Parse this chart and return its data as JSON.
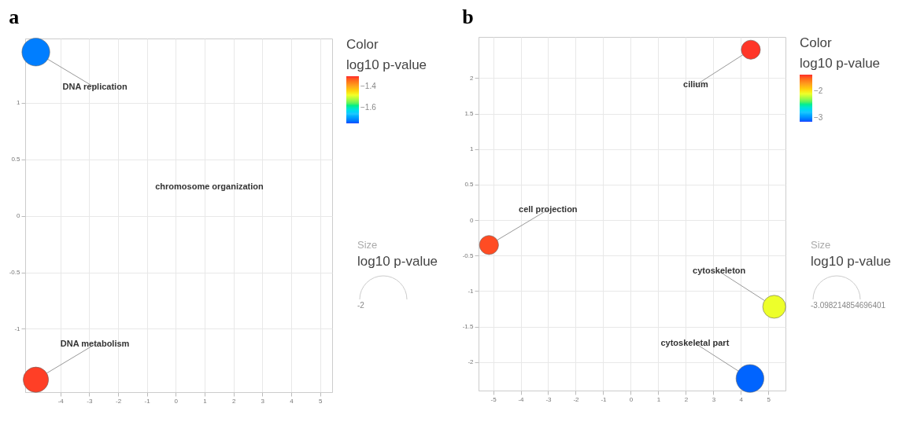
{
  "chart_data": [
    {
      "type": "bubble",
      "title": "a",
      "legend_title": "log10 p-value",
      "series": [
        {
          "name": "DNA replication",
          "x": [
            -4.85
          ],
          "values": [
            1.45
          ],
          "sizes": [
            1
          ],
          "cvalues": [
            -1.72
          ]
        },
        {
          "name": "DNA metabolism",
          "x": [
            -4.85
          ],
          "values": [
            -1.45
          ],
          "sizes": [
            0.83
          ],
          "cvalues": [
            -1.31
          ]
        }
      ],
      "annotations": [
        "Color",
        "Size",
        "-2",
        "chromosome organization"
      ],
      "xlim": [
        -5.22,
        5.42
      ],
      "xticks": [
        -4,
        -3,
        -2,
        -1,
        0,
        1,
        2,
        3,
        4,
        5
      ],
      "ylim": [
        -1.56,
        1.57
      ],
      "yticks": [
        -1,
        -0.5,
        0,
        0.5,
        1
      ],
      "clim": [
        -1.75,
        -1.3
      ],
      "cticks": [
        -1.6,
        -1.4
      ],
      "grid": true
    },
    {
      "type": "bubble",
      "title": "b",
      "legend_title": "log10 p-value",
      "series": [
        {
          "name": "cilium",
          "x": [
            4.36
          ],
          "values": [
            2.4
          ],
          "sizes": [
            0.47
          ],
          "cvalues": [
            -1.4
          ]
        },
        {
          "name": "cell projection",
          "x": [
            -5.15
          ],
          "values": [
            -0.35
          ],
          "sizes": [
            0.47
          ],
          "cvalues": [
            -1.45
          ]
        },
        {
          "name": "cytoskeleton",
          "x": [
            5.21
          ],
          "values": [
            -1.22
          ],
          "sizes": [
            0.68
          ],
          "cvalues": [
            -2.1
          ]
        },
        {
          "name": "cytoskeletal part",
          "x": [
            4.33
          ],
          "values": [
            -2.23
          ],
          "sizes": [
            1
          ],
          "cvalues": [
            -3.098
          ]
        }
      ],
      "annotations": [
        "Color",
        "Size",
        "-3.098214854696401"
      ],
      "xlim": [
        -5.53,
        5.62
      ],
      "xticks": [
        -5,
        -4,
        -3,
        -2,
        -1,
        0,
        1,
        2,
        3,
        4,
        5
      ],
      "ylim": [
        -2.4,
        2.58
      ],
      "yticks": [
        -2,
        -1.5,
        -1,
        -0.5,
        0,
        0.5,
        1,
        1.5,
        2
      ],
      "clim": [
        -3.15,
        -1.38
      ],
      "cticks": [
        -3,
        -2
      ],
      "grid": true
    }
  ]
}
